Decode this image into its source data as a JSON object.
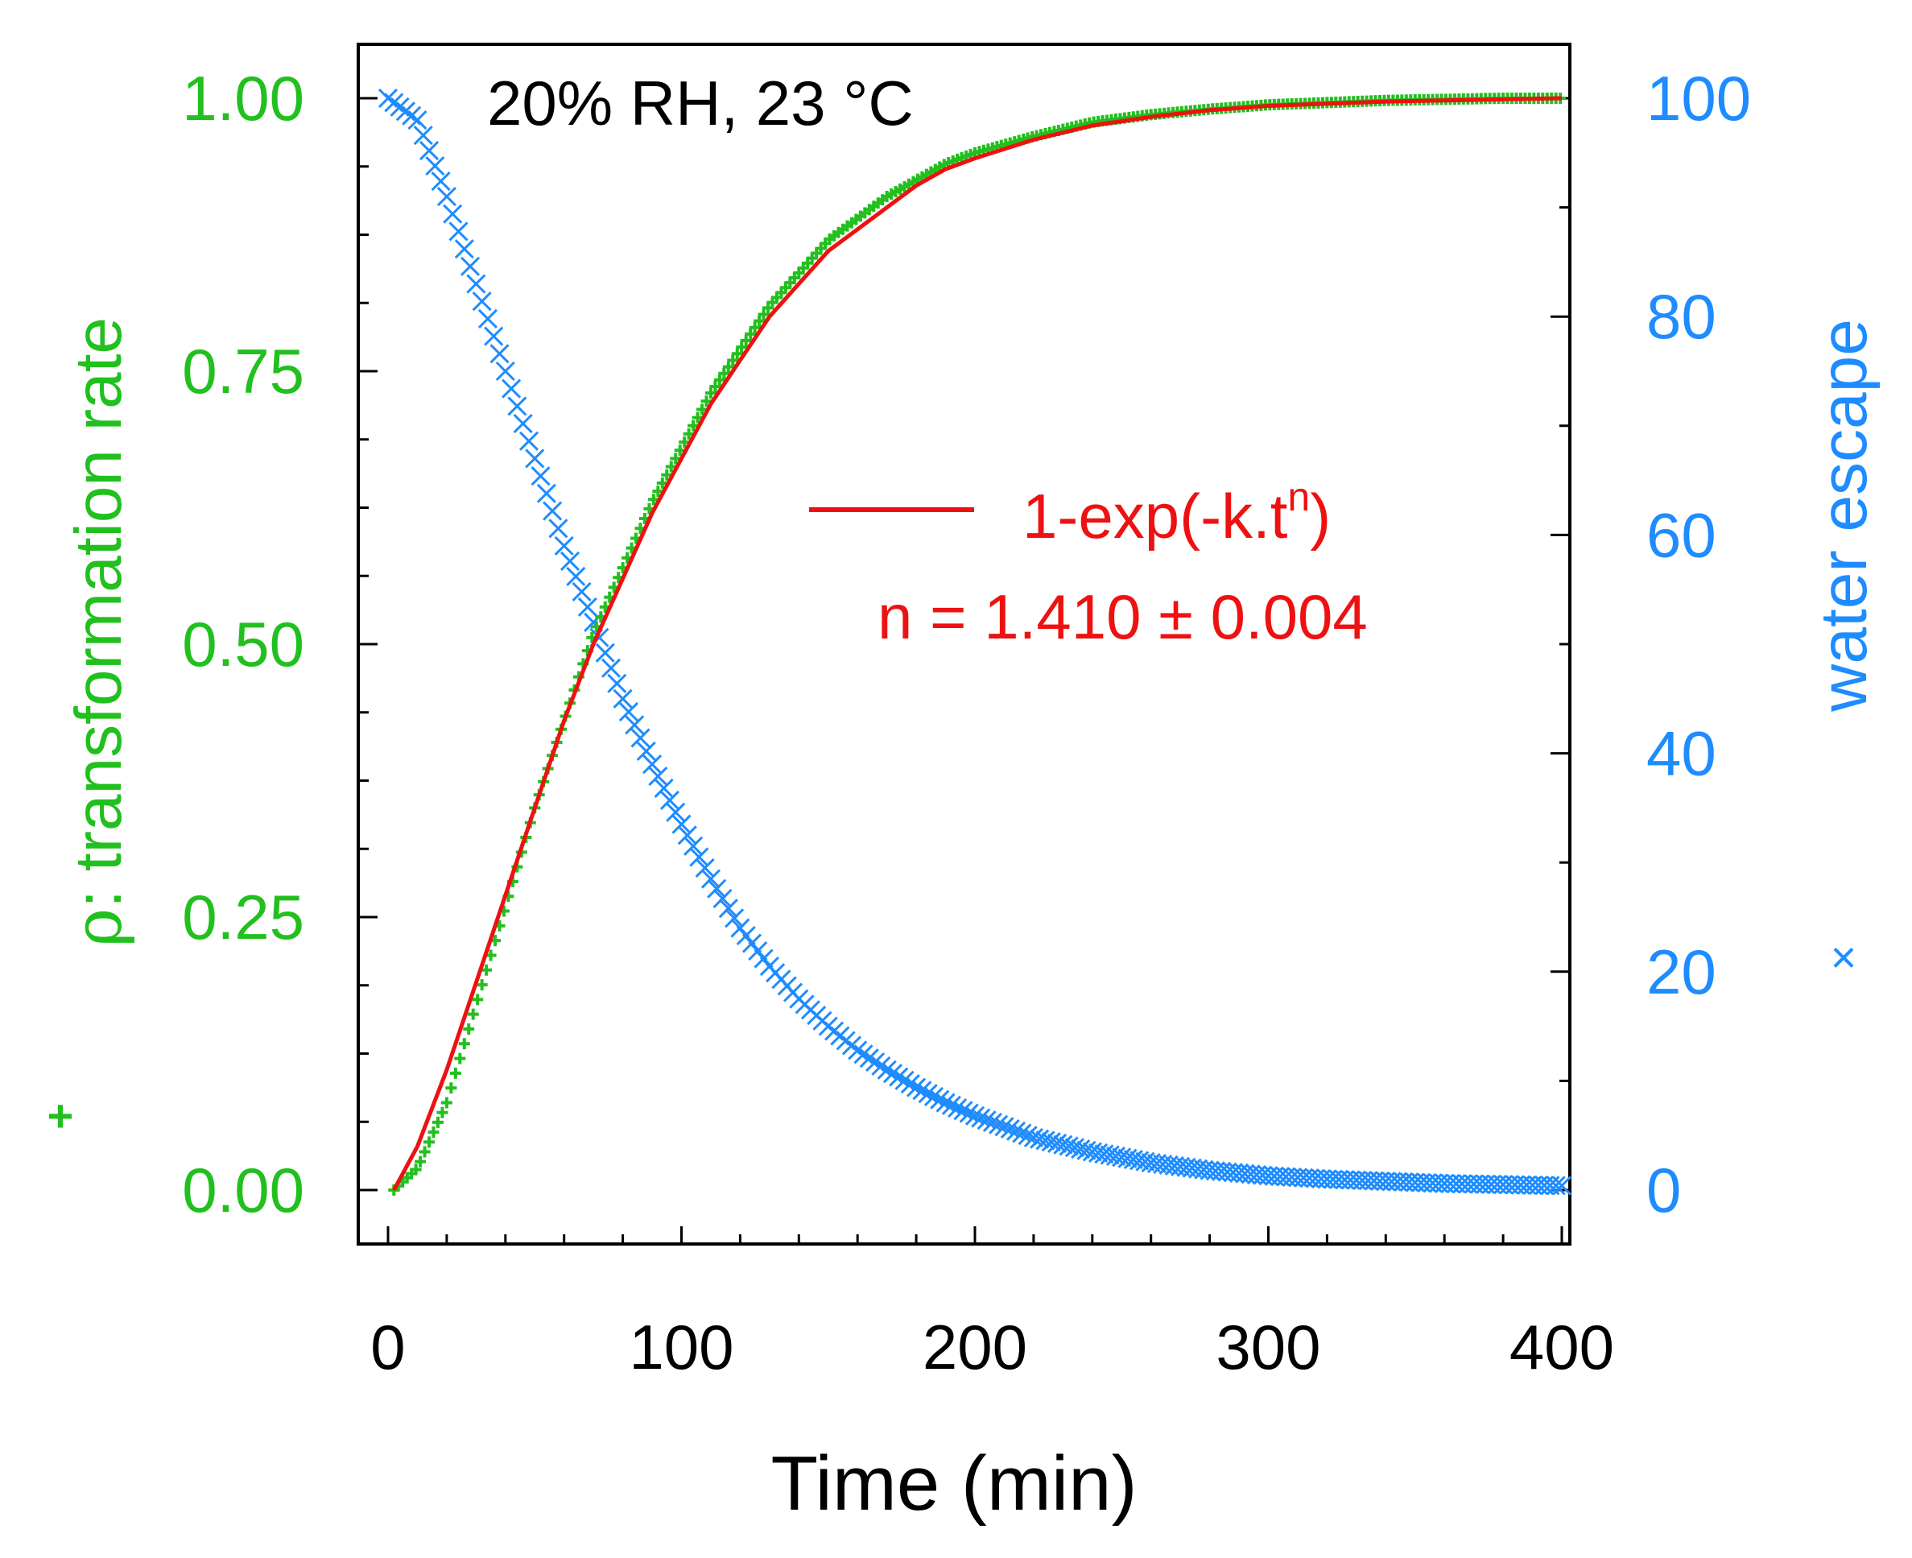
{
  "chart_data": {
    "type": "scatter",
    "title": "",
    "condition_label": "20% RH, 23 °C",
    "xlabel": "Time (min)",
    "xlim": [
      -10,
      400
    ],
    "xticks": [
      0,
      100,
      200,
      300,
      400
    ],
    "xtick_labels": [
      "0",
      "100",
      "200",
      "300",
      "400"
    ],
    "y_left": {
      "label_prefix": "ρ",
      "label": ": transformation rate",
      "marker_symbol": "+",
      "lim": [
        -0.05,
        1.05
      ],
      "ticks": [
        0.0,
        0.25,
        0.5,
        0.75,
        1.0
      ],
      "tick_labels": [
        "0.00",
        "0.25",
        "0.50",
        "0.75",
        "1.00"
      ],
      "color": "#22c01e"
    },
    "y_right": {
      "label": "water escape",
      "marker_symbol": "×",
      "lim": [
        -5,
        105
      ],
      "ticks": [
        0,
        20,
        40,
        60,
        80,
        100
      ],
      "tick_labels": [
        "0",
        "20",
        "40",
        "60",
        "80",
        "100"
      ],
      "color": "#1e8cff"
    },
    "fit": {
      "label_base": "1-exp(-k.t",
      "label_sup": "n",
      "label_close": ")",
      "n_text": "n = 1.410 ± 0.004",
      "color": "#ee1111"
    },
    "series": [
      {
        "name": "ρ: transformation rate",
        "marker": "plus",
        "axis": "left",
        "color": "#22c01e",
        "x": [
          2,
          10,
          20,
          30,
          40,
          50,
          60,
          70,
          80,
          90,
          100,
          110,
          120,
          130,
          140,
          150,
          160,
          170,
          180,
          190,
          200,
          220,
          240,
          260,
          280,
          300,
          320,
          340,
          360,
          380,
          400
        ],
        "y": [
          0.0,
          0.02,
          0.08,
          0.17,
          0.26,
          0.35,
          0.43,
          0.51,
          0.57,
          0.63,
          0.68,
          0.73,
          0.77,
          0.81,
          0.84,
          0.87,
          0.89,
          0.91,
          0.925,
          0.94,
          0.95,
          0.965,
          0.978,
          0.985,
          0.99,
          0.994,
          0.996,
          0.998,
          0.999,
          1.0,
          1.0
        ]
      },
      {
        "name": "water escape",
        "marker": "x",
        "axis": "right",
        "color": "#1e8cff",
        "x": [
          0,
          10,
          20,
          30,
          40,
          50,
          60,
          70,
          80,
          90,
          100,
          110,
          120,
          130,
          140,
          150,
          160,
          170,
          180,
          190,
          200,
          220,
          240,
          260,
          280,
          300,
          320,
          340,
          360,
          380,
          400
        ],
        "y": [
          100,
          98,
          91,
          83,
          75,
          67,
          59,
          52,
          45,
          39,
          33.5,
          28.5,
          24,
          20.5,
          17.5,
          15,
          12.8,
          11,
          9.4,
          8,
          6.8,
          4.8,
          3.5,
          2.5,
          1.8,
          1.3,
          1.0,
          0.8,
          0.6,
          0.5,
          0.4
        ]
      },
      {
        "name": "1-exp(-k.t^n) fit",
        "marker": "line",
        "axis": "left",
        "color": "#ee1111",
        "x": [
          2,
          10,
          20,
          30,
          40,
          50,
          60,
          70,
          80,
          90,
          100,
          110,
          120,
          130,
          140,
          150,
          160,
          170,
          180,
          190,
          200,
          220,
          240,
          260,
          280,
          300,
          320,
          340,
          360,
          380,
          400
        ],
        "y": [
          0.0,
          0.04,
          0.11,
          0.19,
          0.27,
          0.35,
          0.43,
          0.5,
          0.56,
          0.62,
          0.67,
          0.72,
          0.76,
          0.8,
          0.83,
          0.86,
          0.88,
          0.9,
          0.92,
          0.935,
          0.945,
          0.962,
          0.975,
          0.983,
          0.989,
          0.993,
          0.995,
          0.997,
          0.998,
          0.999,
          1.0
        ]
      }
    ]
  }
}
